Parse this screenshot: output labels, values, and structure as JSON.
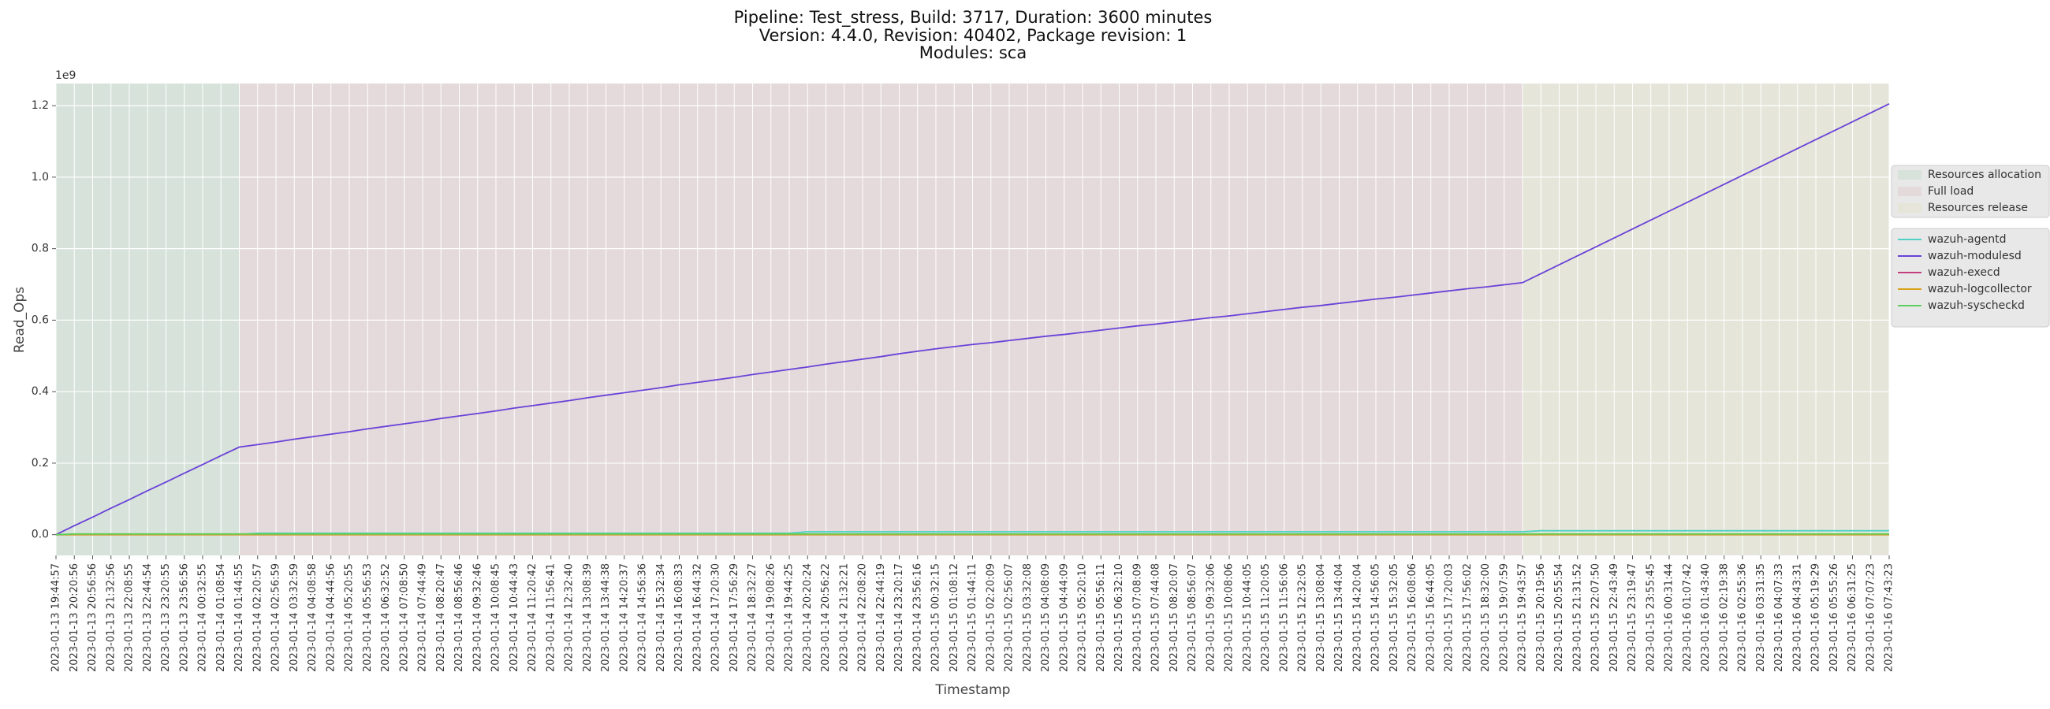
{
  "chart_data": {
    "type": "line",
    "title": "Pipeline: Test_stress, Build: 3717, Duration: 3600 minutes",
    "subtitle": "Version: 4.4.0, Revision: 40402, Package revision: 1",
    "subtitle2": "Modules: sca",
    "x_label": "Timestamp",
    "y_label": "Read_Ops",
    "y_offset_label": "1e9",
    "categories": [
      "2023-01-13 19:44:57",
      "2023-01-13 20:20:56",
      "2023-01-13 20:56:56",
      "2023-01-13 21:32:56",
      "2023-01-13 22:08:55",
      "2023-01-13 22:44:54",
      "2023-01-13 23:20:55",
      "2023-01-13 23:56:56",
      "2023-01-14 00:32:55",
      "2023-01-14 01:08:54",
      "2023-01-14 01:44:55",
      "2023-01-14 02:20:57",
      "2023-01-14 02:56:59",
      "2023-01-14 03:32:59",
      "2023-01-14 04:08:58",
      "2023-01-14 04:44:56",
      "2023-01-14 05:20:55",
      "2023-01-14 05:56:53",
      "2023-01-14 06:32:52",
      "2023-01-14 07:08:50",
      "2023-01-14 07:44:49",
      "2023-01-14 08:20:47",
      "2023-01-14 08:56:46",
      "2023-01-14 09:32:46",
      "2023-01-14 10:08:45",
      "2023-01-14 10:44:43",
      "2023-01-14 11:20:42",
      "2023-01-14 11:56:41",
      "2023-01-14 12:32:40",
      "2023-01-14 13:08:39",
      "2023-01-14 13:44:38",
      "2023-01-14 14:20:37",
      "2023-01-14 14:56:36",
      "2023-01-14 15:32:34",
      "2023-01-14 16:08:33",
      "2023-01-14 16:44:32",
      "2023-01-14 17:20:30",
      "2023-01-14 17:56:29",
      "2023-01-14 18:32:27",
      "2023-01-14 19:08:26",
      "2023-01-14 19:44:25",
      "2023-01-14 20:20:24",
      "2023-01-14 20:56:22",
      "2023-01-14 21:32:21",
      "2023-01-14 22:08:20",
      "2023-01-14 22:44:19",
      "2023-01-14 23:20:17",
      "2023-01-14 23:56:16",
      "2023-01-15 00:32:15",
      "2023-01-15 01:08:12",
      "2023-01-15 01:44:11",
      "2023-01-15 02:20:09",
      "2023-01-15 02:56:07",
      "2023-01-15 03:32:08",
      "2023-01-15 04:08:09",
      "2023-01-15 04:44:09",
      "2023-01-15 05:20:10",
      "2023-01-15 05:56:11",
      "2023-01-15 06:32:10",
      "2023-01-15 07:08:09",
      "2023-01-15 07:44:08",
      "2023-01-15 08:20:07",
      "2023-01-15 08:56:07",
      "2023-01-15 09:32:06",
      "2023-01-15 10:08:06",
      "2023-01-15 10:44:05",
      "2023-01-15 11:20:05",
      "2023-01-15 11:56:06",
      "2023-01-15 12:32:05",
      "2023-01-15 13:08:04",
      "2023-01-15 13:44:04",
      "2023-01-15 14:20:04",
      "2023-01-15 14:56:05",
      "2023-01-15 15:32:05",
      "2023-01-15 16:08:06",
      "2023-01-15 16:44:05",
      "2023-01-15 17:20:03",
      "2023-01-15 17:56:02",
      "2023-01-15 18:32:00",
      "2023-01-15 19:07:59",
      "2023-01-15 19:43:57",
      "2023-01-15 20:19:56",
      "2023-01-15 20:55:54",
      "2023-01-15 21:31:52",
      "2023-01-15 22:07:50",
      "2023-01-15 22:43:49",
      "2023-01-15 23:19:47",
      "2023-01-15 23:55:45",
      "2023-01-16 00:31:44",
      "2023-01-16 01:07:42",
      "2023-01-16 01:43:40",
      "2023-01-16 02:19:38",
      "2023-01-16 02:55:36",
      "2023-01-16 03:31:35",
      "2023-01-16 04:07:33",
      "2023-01-16 04:43:31",
      "2023-01-16 05:19:29",
      "2023-01-16 05:55:26",
      "2023-01-16 06:31:25",
      "2023-01-16 07:07:23",
      "2023-01-16 07:43:23"
    ],
    "regions": [
      {
        "name": "Resources allocation",
        "color": "#d6e2da",
        "start": "2023-01-13 19:44:57",
        "end": "2023-01-14 01:44:55"
      },
      {
        "name": "Full load",
        "color": "#e4d9db",
        "start": "2023-01-14 01:44:55",
        "end": "2023-01-15 19:43:57"
      },
      {
        "name": "Resources release",
        "color": "#e5e6d9",
        "start": "2023-01-15 19:43:57",
        "end": "2023-01-16 07:43:23"
      }
    ],
    "series": [
      {
        "name": "wazuh-agentd",
        "color": "#4fd1c5",
        "values": [
          0,
          0.001,
          0.001,
          0.001,
          0.001,
          0.001,
          0.001,
          0.001,
          0.001,
          0.001,
          0.001,
          0.004,
          0.004,
          0.004,
          0.004,
          0.004,
          0.004,
          0.004,
          0.004,
          0.004,
          0.004,
          0.004,
          0.004,
          0.004,
          0.004,
          0.004,
          0.004,
          0.004,
          0.004,
          0.004,
          0.004,
          0.004,
          0.004,
          0.004,
          0.004,
          0.004,
          0.004,
          0.004,
          0.004,
          0.004,
          0.004,
          0.008,
          0.008,
          0.008,
          0.008,
          0.008,
          0.008,
          0.008,
          0.008,
          0.008,
          0.008,
          0.008,
          0.008,
          0.008,
          0.008,
          0.008,
          0.008,
          0.008,
          0.008,
          0.008,
          0.008,
          0.008,
          0.008,
          0.008,
          0.008,
          0.008,
          0.008,
          0.008,
          0.008,
          0.008,
          0.008,
          0.008,
          0.008,
          0.008,
          0.008,
          0.008,
          0.008,
          0.008,
          0.008,
          0.008,
          0.008,
          0.011,
          0.011,
          0.011,
          0.011,
          0.011,
          0.011,
          0.011,
          0.011,
          0.011,
          0.011,
          0.011,
          0.011,
          0.011,
          0.011,
          0.011,
          0.011,
          0.011,
          0.011,
          0.011,
          0.011
        ]
      },
      {
        "name": "wazuh-modulesd",
        "color": "#6a42d8",
        "values": [
          0,
          0.025,
          0.049,
          0.074,
          0.098,
          0.123,
          0.147,
          0.172,
          0.196,
          0.221,
          0.245,
          0.252,
          0.259,
          0.267,
          0.274,
          0.281,
          0.288,
          0.296,
          0.303,
          0.31,
          0.317,
          0.325,
          0.332,
          0.339,
          0.346,
          0.354,
          0.361,
          0.368,
          0.375,
          0.383,
          0.39,
          0.397,
          0.404,
          0.411,
          0.419,
          0.426,
          0.433,
          0.44,
          0.448,
          0.455,
          0.462,
          0.469,
          0.477,
          0.484,
          0.491,
          0.498,
          0.506,
          0.513,
          0.52,
          0.526,
          0.532,
          0.537,
          0.543,
          0.549,
          0.555,
          0.56,
          0.566,
          0.572,
          0.578,
          0.584,
          0.589,
          0.595,
          0.601,
          0.607,
          0.612,
          0.618,
          0.624,
          0.63,
          0.636,
          0.641,
          0.647,
          0.653,
          0.659,
          0.664,
          0.67,
          0.676,
          0.682,
          0.688,
          0.693,
          0.699,
          0.705,
          0.73,
          0.755,
          0.78,
          0.805,
          0.83,
          0.855,
          0.88,
          0.905,
          0.93,
          0.955,
          0.98,
          1.005,
          1.03,
          1.055,
          1.08,
          1.105,
          1.13,
          1.155,
          1.18,
          1.205
        ]
      },
      {
        "name": "wazuh-execd",
        "color": "#c2407e",
        "values": [
          0,
          0,
          0,
          0,
          0,
          0,
          0,
          0,
          0,
          0,
          0,
          0,
          0,
          0,
          0,
          0,
          0,
          0,
          0,
          0,
          0,
          0,
          0,
          0,
          0,
          0,
          0,
          0,
          0,
          0,
          0,
          0,
          0,
          0,
          0,
          0,
          0,
          0,
          0,
          0,
          0,
          0,
          0,
          0,
          0,
          0,
          0,
          0,
          0,
          0,
          0,
          0,
          0,
          0,
          0,
          0,
          0,
          0,
          0,
          0,
          0,
          0,
          0,
          0,
          0,
          0,
          0,
          0,
          0,
          0,
          0,
          0,
          0,
          0,
          0,
          0,
          0,
          0,
          0,
          0,
          0,
          0,
          0,
          0,
          0,
          0,
          0,
          0,
          0,
          0,
          0,
          0,
          0,
          0,
          0,
          0,
          0,
          0,
          0,
          0,
          0
        ]
      },
      {
        "name": "wazuh-logcollector",
        "color": "#d9a21b",
        "values": [
          0,
          0,
          0,
          0,
          0,
          0,
          0,
          0,
          0,
          0,
          0,
          0,
          0,
          0,
          0,
          0,
          0,
          0,
          0,
          0,
          0,
          0,
          0,
          0,
          0,
          0,
          0,
          0,
          0,
          0,
          0,
          0,
          0,
          0,
          0,
          0,
          0,
          0,
          0,
          0,
          0,
          0,
          0,
          0,
          0,
          0,
          0,
          0,
          0,
          0,
          0,
          0,
          0,
          0,
          0,
          0,
          0,
          0,
          0,
          0,
          0,
          0,
          0,
          0,
          0,
          0,
          0,
          0,
          0,
          0,
          0,
          0,
          0,
          0,
          0,
          0,
          0,
          0,
          0,
          0,
          0,
          0,
          0,
          0,
          0,
          0,
          0,
          0,
          0,
          0,
          0,
          0,
          0,
          0,
          0,
          0,
          0,
          0,
          0,
          0,
          0
        ]
      },
      {
        "name": "wazuh-syscheckd",
        "color": "#5ccf5c",
        "values": [
          0,
          0.002,
          0.002,
          0.002,
          0.002,
          0.002,
          0.002,
          0.002,
          0.002,
          0.002,
          0.002,
          0.002,
          0.002,
          0.002,
          0.002,
          0.002,
          0.002,
          0.002,
          0.002,
          0.002,
          0.002,
          0.002,
          0.002,
          0.002,
          0.002,
          0.002,
          0.002,
          0.002,
          0.002,
          0.002,
          0.002,
          0.002,
          0.002,
          0.002,
          0.002,
          0.002,
          0.002,
          0.002,
          0.002,
          0.002,
          0.002,
          0.002,
          0.002,
          0.002,
          0.002,
          0.002,
          0.002,
          0.002,
          0.002,
          0.002,
          0.002,
          0.002,
          0.002,
          0.002,
          0.002,
          0.002,
          0.002,
          0.002,
          0.002,
          0.002,
          0.002,
          0.002,
          0.002,
          0.002,
          0.002,
          0.002,
          0.002,
          0.002,
          0.002,
          0.002,
          0.002,
          0.002,
          0.002,
          0.002,
          0.002,
          0.002,
          0.002,
          0.002,
          0.002,
          0.002,
          0.002,
          0.002,
          0.002,
          0.002,
          0.002,
          0.002,
          0.002,
          0.002,
          0.002,
          0.002,
          0.002,
          0.002,
          0.002,
          0.002,
          0.002,
          0.002,
          0.002,
          0.002,
          0.002,
          0.002,
          0.002
        ]
      }
    ],
    "ylim": [
      -0.058,
      1.262
    ],
    "yticks": [
      {
        "value": 0,
        "label": "0.0"
      },
      0.2,
      0.4,
      0.6,
      0.8,
      {
        "value": 1,
        "label": "1.0"
      },
      1.2
    ],
    "grid": true
  }
}
